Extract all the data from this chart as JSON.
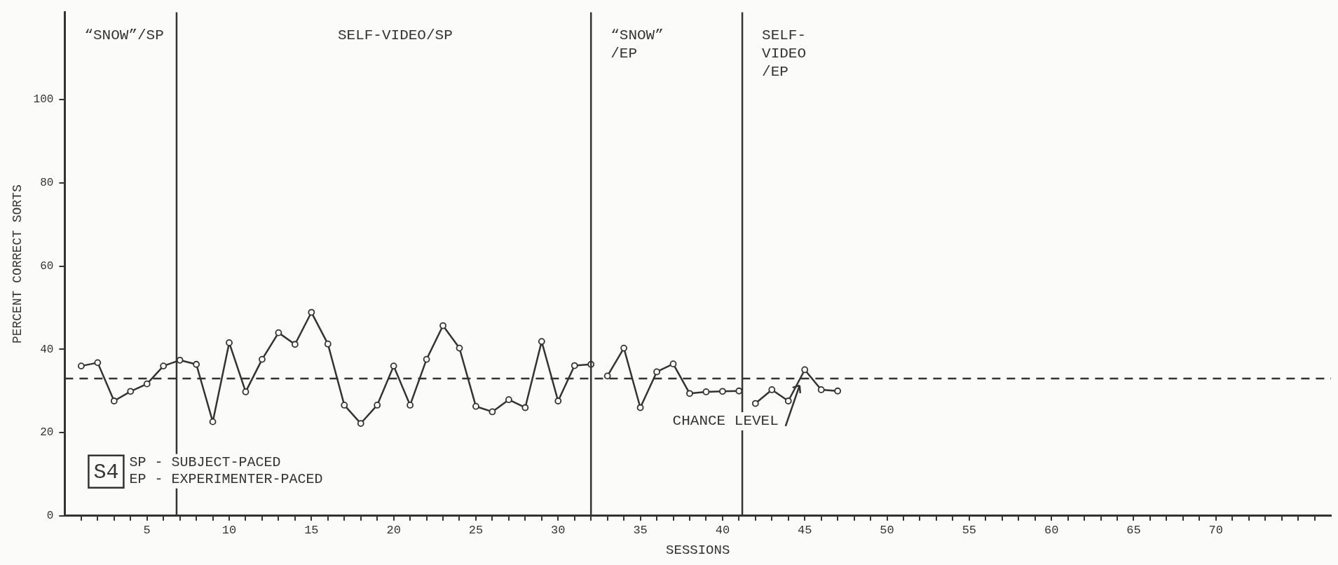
{
  "chart_data": {
    "type": "line",
    "xlabel": "SESSIONS",
    "ylabel": "PERCENT CORRECT SORTS",
    "xlim": [
      0,
      77
    ],
    "ylim": [
      0,
      121
    ],
    "xticks": [
      {
        "value": 1,
        "label": null
      },
      {
        "value": 2,
        "label": null
      },
      {
        "value": 3,
        "label": null
      },
      {
        "value": 4,
        "label": null
      },
      5,
      {
        "value": 6,
        "label": null
      },
      {
        "value": 7,
        "label": null
      },
      {
        "value": 8,
        "label": null
      },
      {
        "value": 9,
        "label": null
      },
      10,
      {
        "value": 11,
        "label": null
      },
      {
        "value": 12,
        "label": null
      },
      {
        "value": 13,
        "label": null
      },
      {
        "value": 14,
        "label": null
      },
      15,
      {
        "value": 16,
        "label": null
      },
      {
        "value": 17,
        "label": null
      },
      {
        "value": 18,
        "label": null
      },
      {
        "value": 19,
        "label": null
      },
      20,
      {
        "value": 21,
        "label": null
      },
      {
        "value": 22,
        "label": null
      },
      {
        "value": 23,
        "label": null
      },
      {
        "value": 24,
        "label": null
      },
      25,
      {
        "value": 26,
        "label": null
      },
      {
        "value": 27,
        "label": null
      },
      {
        "value": 28,
        "label": null
      },
      {
        "value": 29,
        "label": null
      },
      30,
      {
        "value": 31,
        "label": null
      },
      {
        "value": 32,
        "label": null
      },
      {
        "value": 33,
        "label": null
      },
      {
        "value": 34,
        "label": null
      },
      35,
      {
        "value": 36,
        "label": null
      },
      {
        "value": 37,
        "label": null
      },
      {
        "value": 38,
        "label": null
      },
      {
        "value": 39,
        "label": null
      },
      40,
      {
        "value": 41,
        "label": null
      },
      {
        "value": 42,
        "label": null
      },
      {
        "value": 43,
        "label": null
      },
      {
        "value": 44,
        "label": null
      },
      45,
      {
        "value": 46,
        "label": null
      },
      {
        "value": 47,
        "label": null
      },
      {
        "value": 48,
        "label": null
      },
      {
        "value": 49,
        "label": null
      },
      50,
      {
        "value": 51,
        "label": null
      },
      {
        "value": 52,
        "label": null
      },
      {
        "value": 53,
        "label": null
      },
      {
        "value": 54,
        "label": null
      },
      55,
      {
        "value": 56,
        "label": null
      },
      {
        "value": 57,
        "label": null
      },
      {
        "value": 58,
        "label": null
      },
      {
        "value": 59,
        "label": null
      },
      60,
      {
        "value": 61,
        "label": null
      },
      {
        "value": 62,
        "label": null
      },
      {
        "value": 63,
        "label": null
      },
      {
        "value": 64,
        "label": null
      },
      65,
      {
        "value": 66,
        "label": null
      },
      {
        "value": 67,
        "label": null
      },
      {
        "value": 68,
        "label": null
      },
      {
        "value": 69,
        "label": null
      },
      70,
      {
        "value": 71,
        "label": null
      },
      {
        "value": 72,
        "label": null
      },
      {
        "value": 73,
        "label": null
      },
      {
        "value": 74,
        "label": null
      },
      {
        "value": 75,
        "label": null
      },
      {
        "value": 76,
        "label": null
      }
    ],
    "yticks": [
      0,
      20,
      40,
      60,
      80,
      100
    ],
    "grid": false,
    "legend": false,
    "marker": "circle",
    "line_style": "solid",
    "series": [
      {
        "color": "#333333",
        "x": [
          1,
          2,
          3,
          4,
          5,
          6,
          7,
          8,
          9,
          10,
          11,
          12,
          13,
          14,
          15,
          16,
          17,
          18,
          19,
          20,
          21,
          22,
          23,
          24,
          25,
          26,
          27,
          28,
          29,
          30,
          31,
          32
        ],
        "values": [
          36,
          36.8,
          27.6,
          29.9,
          31.7,
          36,
          37.4,
          36.4,
          22.6,
          41.6,
          29.8,
          37.6,
          44,
          41.2,
          48.9,
          41.3,
          26.6,
          22.2,
          26.6,
          36,
          26.6,
          37.6,
          45.7,
          40.3,
          26.3,
          25,
          27.9,
          26,
          41.9,
          27.6,
          36.1,
          36.4
        ]
      },
      {
        "color": "#333333",
        "x": [
          33,
          34,
          35,
          36,
          37,
          38,
          39,
          40,
          41
        ],
        "values": [
          33.6,
          40.3,
          26,
          34.6,
          36.5,
          29.4,
          29.8,
          29.9,
          30
        ]
      },
      {
        "color": "#333333",
        "x": [
          42,
          43,
          44,
          45,
          46,
          47
        ],
        "values": [
          27,
          30.3,
          27.6,
          35.1,
          30.3,
          30
        ]
      }
    ],
    "ref_lines": [
      {
        "axis": "x",
        "value": 6.8,
        "color": "#333333",
        "line_style": "solid"
      },
      {
        "axis": "x",
        "value": 32,
        "color": "#333333",
        "line_style": "solid"
      },
      {
        "axis": "x",
        "value": 41.2,
        "color": "#333333",
        "line_style": "solid"
      },
      {
        "axis": "y",
        "value": 33,
        "color": "#333333",
        "line_style": "dashed",
        "label": "CHANCE LEVEL"
      }
    ],
    "annotations": [
      "“SNOW”/SP",
      "SELF-VIDEO/SP",
      "“SNOW”\n/EP",
      "SELF-\nVIDEO\n/EP",
      "S4",
      "SP - SUBJECT-PACED",
      "EP - EXPERIMENTER-PACED"
    ]
  }
}
